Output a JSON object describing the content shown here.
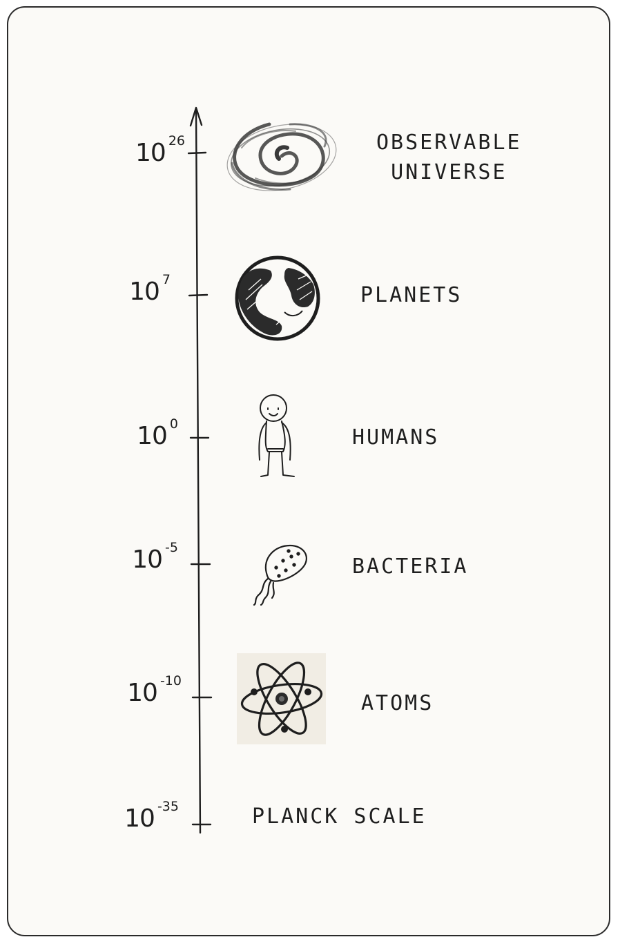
{
  "levels": [
    {
      "base": "10",
      "exponent": "26",
      "label_lines": [
        "OBSERVABLE",
        "UNIVERSE"
      ],
      "icon": "galaxy-icon"
    },
    {
      "base": "10",
      "exponent": "7",
      "label_lines": [
        "PLANETS"
      ],
      "icon": "planet-icon"
    },
    {
      "base": "10",
      "exponent": "0",
      "label_lines": [
        "HUMANS"
      ],
      "icon": "person-icon"
    },
    {
      "base": "10",
      "exponent": "-5",
      "label_lines": [
        "BACTERIA"
      ],
      "icon": "bacterium-icon"
    },
    {
      "base": "10",
      "exponent": "-10",
      "label_lines": [
        "ATOMS"
      ],
      "icon": "atom-icon"
    },
    {
      "base": "10",
      "exponent": "-35",
      "label_lines": [
        "PLANCK SCALE"
      ],
      "icon": ""
    }
  ],
  "colors": {
    "ink": "#1e1e1e",
    "paper": "#fbfaf7",
    "atom_tile": "#f1ede4"
  }
}
